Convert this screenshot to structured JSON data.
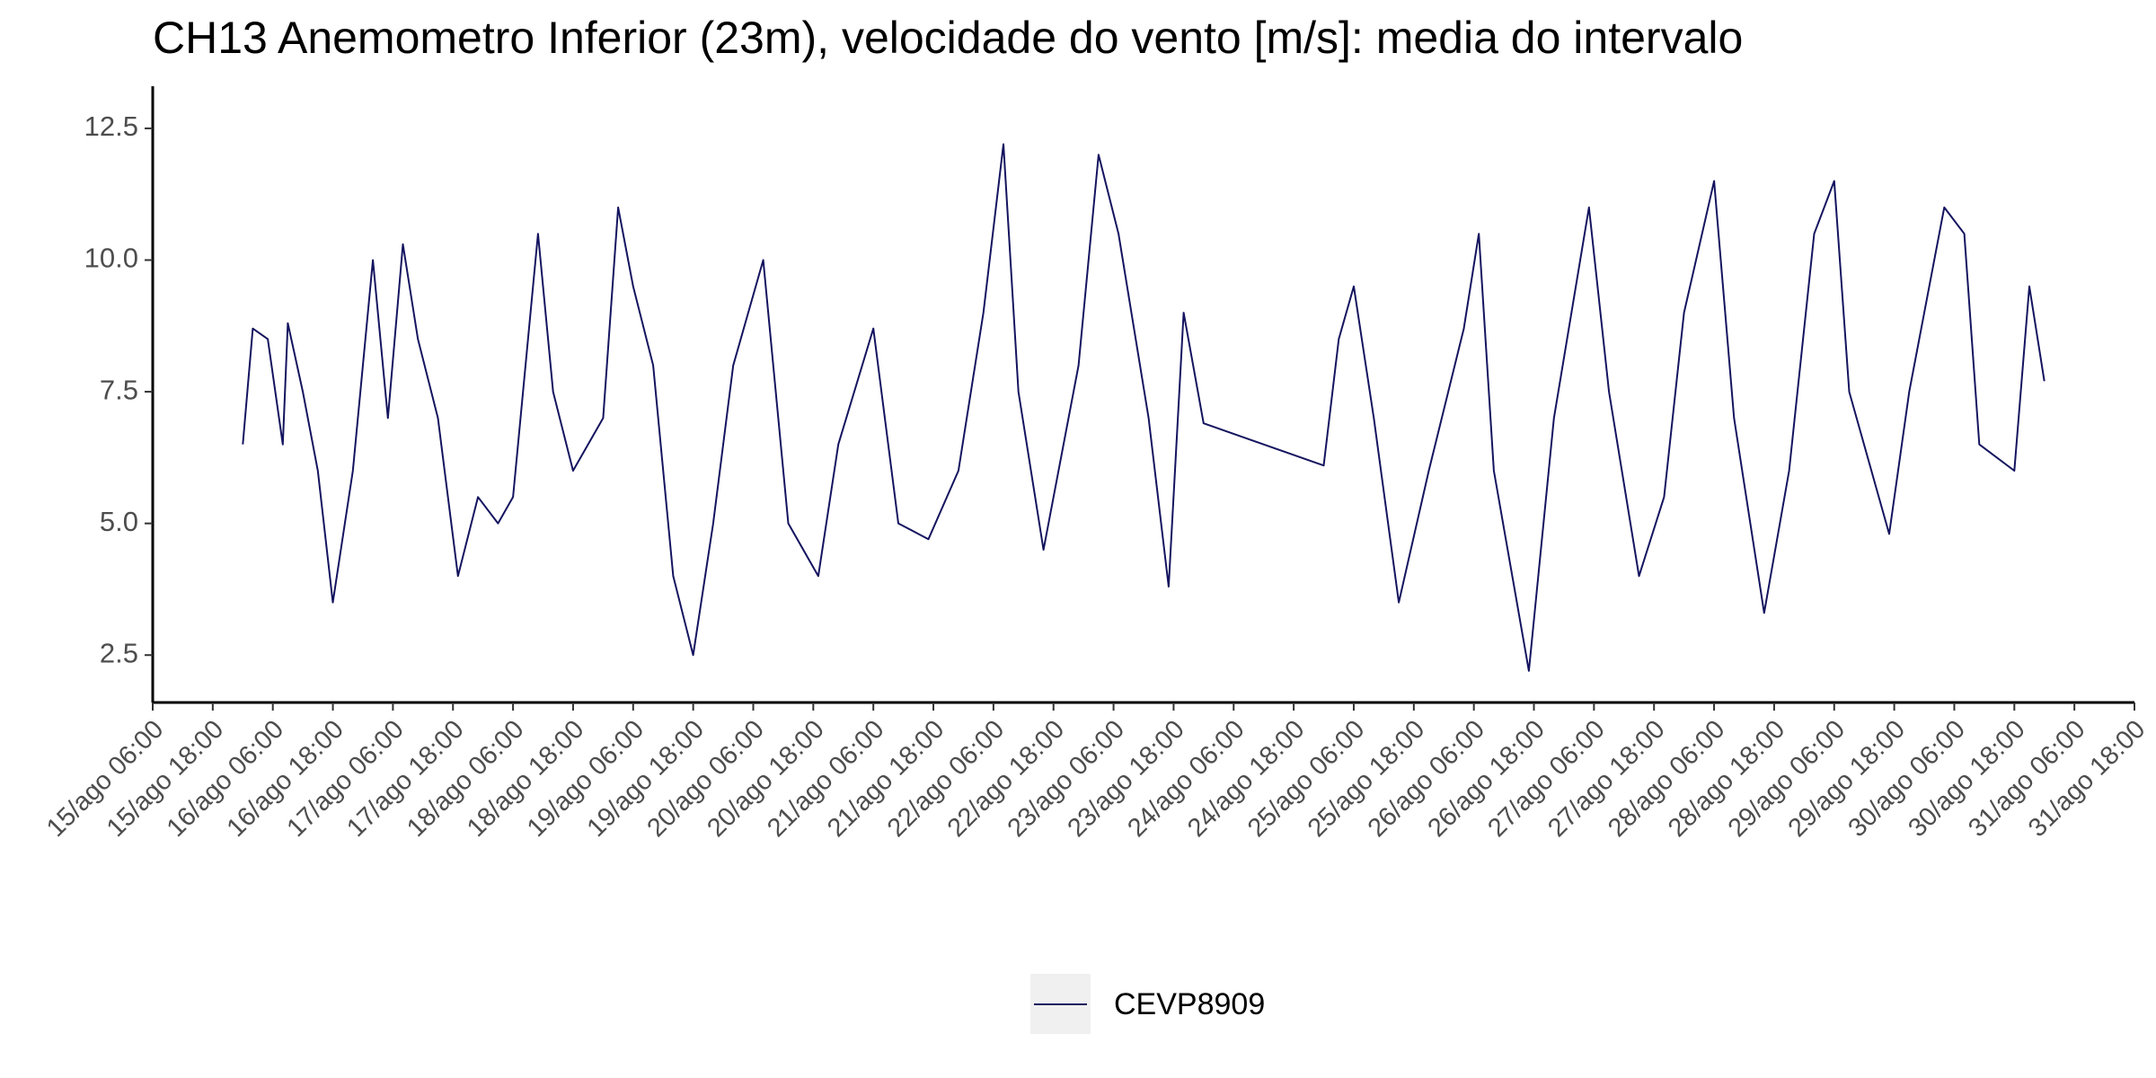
{
  "chart_data": {
    "type": "line",
    "title": "CH13 Anemometro Inferior (23m), velocidade do vento [m/s]: media do intervalo",
    "x": [
      "16/ago 00:00",
      "16/ago 02:00",
      "16/ago 05:00",
      "16/ago 08:00",
      "16/ago 09:00",
      "16/ago 12:00",
      "16/ago 15:00",
      "16/ago 18:00",
      "16/ago 22:00",
      "17/ago 02:00",
      "17/ago 05:00",
      "17/ago 08:00",
      "17/ago 11:00",
      "17/ago 15:00",
      "17/ago 19:00",
      "17/ago 23:00",
      "18/ago 03:00",
      "18/ago 06:00",
      "18/ago 11:00",
      "18/ago 14:00",
      "18/ago 18:00",
      "19/ago 00:00",
      "19/ago 03:00",
      "19/ago 06:00",
      "19/ago 10:00",
      "19/ago 14:00",
      "19/ago 18:00",
      "19/ago 22:00",
      "20/ago 02:00",
      "20/ago 08:00",
      "20/ago 13:00",
      "20/ago 19:00",
      "20/ago 23:00",
      "21/ago 06:00",
      "21/ago 11:00",
      "21/ago 17:00",
      "21/ago 23:00",
      "22/ago 04:00",
      "22/ago 08:00",
      "22/ago 11:00",
      "22/ago 16:00",
      "22/ago 23:00",
      "23/ago 03:00",
      "23/ago 07:00",
      "23/ago 13:00",
      "23/ago 17:00",
      "23/ago 20:00",
      "24/ago 00:00",
      "25/ago 00:00",
      "25/ago 03:00",
      "25/ago 06:00",
      "25/ago 10:00",
      "25/ago 15:00",
      "25/ago 21:00",
      "26/ago 04:00",
      "26/ago 07:00",
      "26/ago 10:00",
      "26/ago 17:00",
      "26/ago 22:00",
      "27/ago 05:00",
      "27/ago 09:00",
      "27/ago 15:00",
      "27/ago 20:00",
      "28/ago 00:00",
      "28/ago 06:00",
      "28/ago 10:00",
      "28/ago 16:00",
      "28/ago 21:00",
      "29/ago 02:00",
      "29/ago 06:00",
      "29/ago 09:00",
      "29/ago 17:00",
      "29/ago 21:00",
      "30/ago 04:00",
      "30/ago 08:00",
      "30/ago 11:00",
      "30/ago 18:00",
      "30/ago 21:00",
      "31/ago 00:00"
    ],
    "series": [
      {
        "name": "CEVP8909",
        "color": "#14145f",
        "values": [
          6.5,
          8.7,
          8.5,
          6.5,
          8.8,
          7.5,
          6,
          3.5,
          6,
          10,
          7,
          10.3,
          8.5,
          7,
          4,
          5.5,
          5,
          5.5,
          10.5,
          7.5,
          6,
          7,
          11,
          9.5,
          8,
          4,
          2.5,
          5,
          8,
          10,
          5,
          4,
          6.5,
          8.7,
          5,
          4.7,
          6,
          9,
          12.2,
          7.5,
          4.5,
          8,
          12,
          10.5,
          7,
          3.8,
          9,
          6.9,
          6.1,
          8.5,
          9.5,
          7,
          3.5,
          6,
          8.7,
          10.5,
          6,
          2.2,
          7,
          11,
          7.5,
          4,
          5.5,
          9,
          11.5,
          7,
          3.3,
          6,
          10.5,
          11.5,
          7.5,
          4.8,
          7.5,
          11,
          10.5,
          6.5,
          6,
          9.5,
          7.7
        ]
      }
    ],
    "xlim": [
      "15/ago 06:00",
      "31/ago 18:00"
    ],
    "xticks": [
      "15/ago 06:00",
      "15/ago 18:00",
      "16/ago 06:00",
      "16/ago 18:00",
      "17/ago 06:00",
      "17/ago 18:00",
      "18/ago 06:00",
      "18/ago 18:00",
      "19/ago 06:00",
      "19/ago 18:00",
      "20/ago 06:00",
      "20/ago 18:00",
      "21/ago 06:00",
      "21/ago 18:00",
      "22/ago 06:00",
      "22/ago 18:00",
      "23/ago 06:00",
      "23/ago 18:00",
      "24/ago 06:00",
      "24/ago 18:00",
      "25/ago 06:00",
      "25/ago 18:00",
      "26/ago 06:00",
      "26/ago 18:00",
      "27/ago 06:00",
      "27/ago 18:00",
      "28/ago 06:00",
      "28/ago 18:00",
      "29/ago 06:00",
      "29/ago 18:00",
      "30/ago 06:00",
      "30/ago 18:00",
      "31/ago 06:00",
      "31/ago 18:00"
    ],
    "ylim": [
      1.6,
      13.3
    ],
    "yticks": [
      2.5,
      {
        "value": 5,
        "label": "5.0"
      },
      7.5,
      {
        "value": 10,
        "label": "10.0"
      },
      12.5
    ]
  }
}
